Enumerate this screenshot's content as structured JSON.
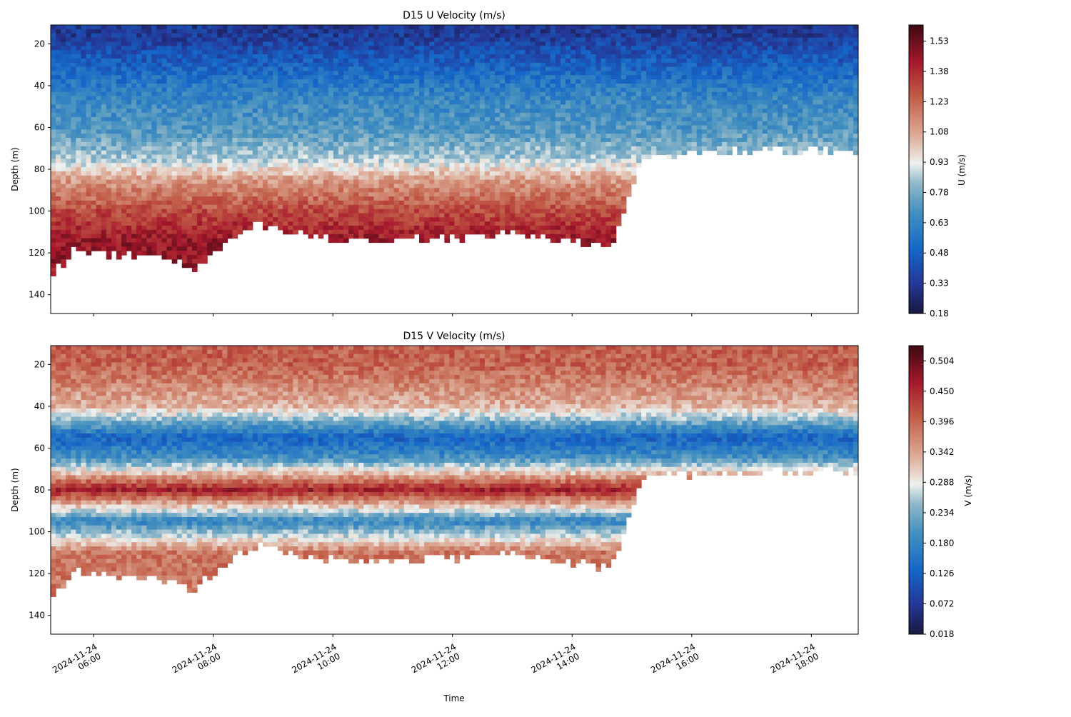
{
  "chart_data": [
    {
      "type": "heatmap",
      "title": "D15 U Velocity (m/s)",
      "xlabel": "",
      "ylabel": "Depth (m)",
      "ylim": [
        149,
        11
      ],
      "y_ticks": [
        20,
        40,
        60,
        80,
        100,
        120,
        140
      ],
      "x_ticks": [
        "2024-11-24 06:00",
        "2024-11-24 08:00",
        "2024-11-24 10:00",
        "2024-11-24 12:00",
        "2024-11-24 14:00",
        "2024-11-24 16:00",
        "2024-11-24 18:00"
      ],
      "x_ticklabels_shown": false,
      "colormap": "balance",
      "colorbar": {
        "label": "U (m/s)",
        "range": [
          0.18,
          1.61
        ],
        "ticks": [
          "0.18",
          "0.33",
          "0.48",
          "0.63",
          "0.78",
          "0.93",
          "1.08",
          "1.23",
          "1.38",
          "1.53"
        ]
      },
      "profile": {
        "surface_depth": 11,
        "depths": [
          15,
          30,
          45,
          60,
          75,
          85,
          100,
          115
        ],
        "values": [
          0.33,
          0.48,
          0.63,
          0.7,
          0.85,
          1.1,
          1.3,
          1.45
        ]
      }
    },
    {
      "type": "heatmap",
      "title": "D15 V Velocity (m/s)",
      "xlabel": "Time",
      "ylabel": "Depth (m)",
      "ylim": [
        149,
        11
      ],
      "y_ticks": [
        20,
        40,
        60,
        80,
        100,
        120,
        140
      ],
      "x_ticks": [
        "2024-11-24 06:00",
        "2024-11-24 08:00",
        "2024-11-24 10:00",
        "2024-11-24 12:00",
        "2024-11-24 14:00",
        "2024-11-24 16:00",
        "2024-11-24 18:00"
      ],
      "x_ticklabels_shown": true,
      "colormap": "balance",
      "colorbar": {
        "label": "V (m/s)",
        "range": [
          0.018,
          0.531
        ],
        "ticks": [
          "0.018",
          "0.072",
          "0.126",
          "0.180",
          "0.234",
          "0.288",
          "0.342",
          "0.396",
          "0.450",
          "0.504"
        ]
      },
      "profile": {
        "surface_depth": 11,
        "depths": [
          20,
          40,
          55,
          65,
          80,
          95,
          110
        ],
        "values": [
          0.4,
          0.33,
          0.13,
          0.2,
          0.46,
          0.18,
          0.38
        ]
      }
    }
  ],
  "time_ticks": [
    {
      "date": "2024-11-24",
      "time": "06:00"
    },
    {
      "date": "2024-11-24",
      "time": "08:00"
    },
    {
      "date": "2024-11-24",
      "time": "10:00"
    },
    {
      "date": "2024-11-24",
      "time": "12:00"
    },
    {
      "date": "2024-11-24",
      "time": "14:00"
    },
    {
      "date": "2024-11-24",
      "time": "16:00"
    },
    {
      "date": "2024-11-24",
      "time": "18:00"
    }
  ],
  "time_range": [
    "2024-11-24 05:17",
    "2024-11-24 18:47"
  ],
  "data_bottom": {
    "times": [
      "05:17",
      "05:40",
      "06:30",
      "07:20",
      "07:40",
      "08:20",
      "08:45",
      "10:00",
      "11:00",
      "12:00",
      "13:00",
      "13:50",
      "14:35",
      "14:45",
      "15:10",
      "16:00",
      "17:00",
      "18:47"
    ],
    "depths": [
      130,
      118,
      120,
      122,
      127,
      112,
      105,
      113,
      113,
      112,
      110,
      113,
      116,
      110,
      73,
      71,
      70,
      70
    ]
  }
}
